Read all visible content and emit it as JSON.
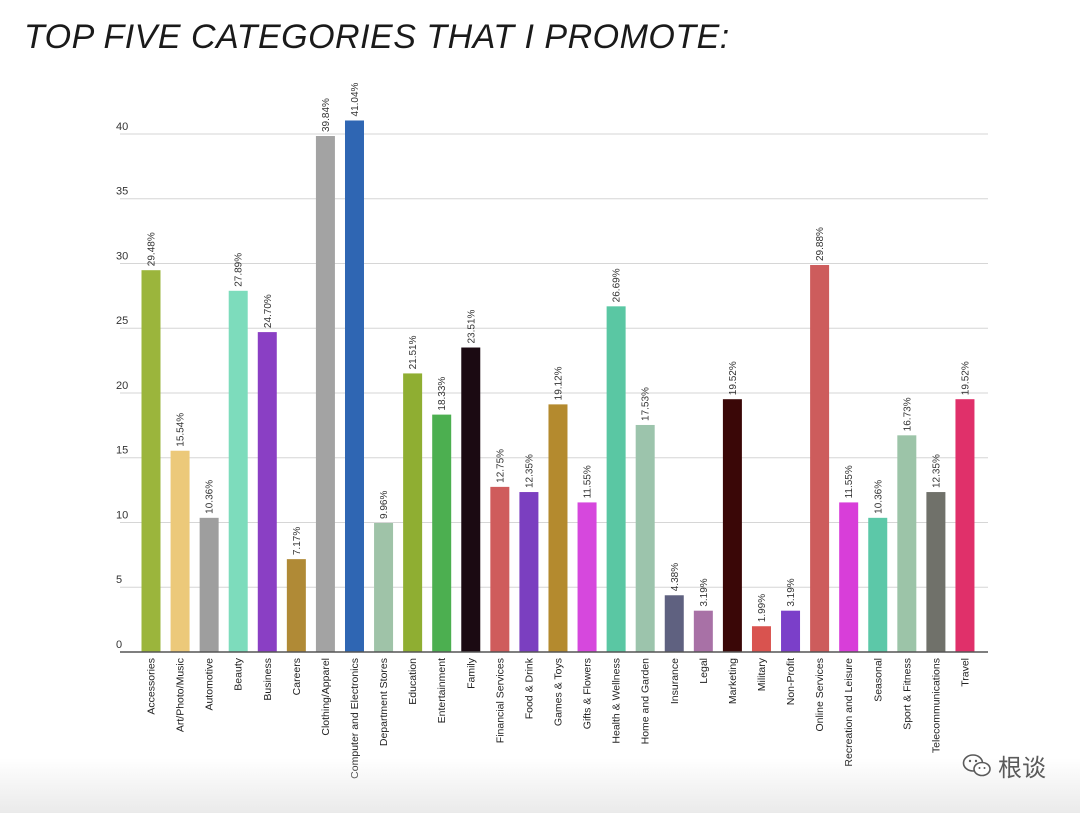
{
  "chart_data": {
    "type": "bar",
    "title": "TOP FIVE CATEGORIES THAT I PROMOTE:",
    "xlabel": "",
    "ylabel": "",
    "ylim": [
      0,
      41
    ],
    "yticks": [
      0,
      5,
      10,
      15,
      20,
      25,
      30,
      35,
      40
    ],
    "grid": true,
    "legend": "none",
    "categories": [
      "Accessories",
      "Art/Photo/Music",
      "Automotive",
      "Beauty",
      "Business",
      "Careers",
      "Clothing/Apparel",
      "Computer and Electronics",
      "Department Stores",
      "Education",
      "Entertainment",
      "Family",
      "Financial Services",
      "Food & Drink",
      "Games & Toys",
      "Gifts & Flowers",
      "Health & Wellness",
      "Home and Garden",
      "Insurance",
      "Legal",
      "Marketing",
      "Military",
      "Non-Profit",
      "Online Services",
      "Recreation and Leisure",
      "Seasonal",
      "Sport & Fitness",
      "Telecommunications",
      "Travel"
    ],
    "values": [
      29.48,
      15.54,
      10.36,
      27.89,
      24.7,
      7.17,
      39.84,
      41.04,
      9.96,
      21.51,
      18.33,
      23.51,
      12.75,
      12.35,
      19.12,
      11.55,
      26.69,
      17.53,
      4.38,
      3.19,
      19.52,
      1.99,
      3.19,
      29.88,
      11.55,
      10.36,
      16.73,
      12.35,
      19.52
    ],
    "value_labels": [
      "29.48%",
      "15.54%",
      "10.36%",
      "27.89%",
      "24.70%",
      "7.17%",
      "39.84%",
      "41.04%",
      "9.96%",
      "21.51%",
      "18.33%",
      "23.51%",
      "12.75%",
      "12.35%",
      "19.12%",
      "11.55%",
      "26.69%",
      "17.53%",
      "4.38%",
      "3.19%",
      "19.52%",
      "1.99%",
      "3.19%",
      "29.88%",
      "11.55%",
      "10.36%",
      "16.73%",
      "12.35%",
      "19.52%"
    ],
    "colors": [
      "#9bb53c",
      "#ecc97a",
      "#9e9e9e",
      "#7ddcbc",
      "#8a3fc4",
      "#b08a36",
      "#a3a3a3",
      "#2f66b3",
      "#9fc3a8",
      "#8fae32",
      "#4caf50",
      "#1b0a12",
      "#cf5c5c",
      "#7b3fc0",
      "#b48a2e",
      "#d648dd",
      "#5ac7a3",
      "#9cc4ac",
      "#5f6180",
      "#a871a6",
      "#3a0707",
      "#d9534f",
      "#7b3fc9",
      "#cd5c5c",
      "#d83ed9",
      "#5cc8a8",
      "#9cc4a8",
      "#70716a",
      "#e0306a"
    ]
  },
  "watermark": {
    "text": "根谈",
    "icon": "wechat-icon"
  }
}
